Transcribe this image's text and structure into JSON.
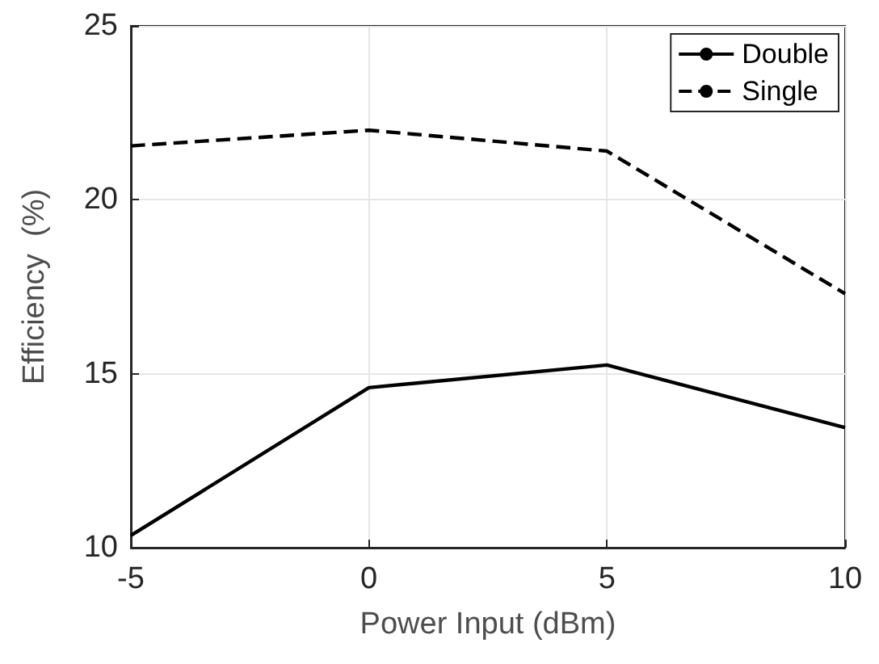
{
  "chart_data": {
    "type": "line",
    "xlabel": "Power Input (dBm)",
    "ylabel": "Efficiency  (%)",
    "x": [
      -5,
      0,
      5,
      10
    ],
    "series": [
      {
        "name": "Double",
        "color": "#000000",
        "line_style": "solid",
        "values": [
          10.35,
          14.6,
          15.25,
          13.45
        ]
      },
      {
        "name": "Single",
        "color": "#000000",
        "line_style": "dashed",
        "values": [
          21.55,
          22.0,
          21.4,
          17.3
        ]
      }
    ],
    "xlim": [
      -5,
      10
    ],
    "xticks": [
      -5,
      0,
      5,
      10
    ],
    "ylim": [
      10,
      25
    ],
    "yticks": [
      10,
      15,
      20,
      25
    ],
    "grid": true,
    "legend": "top right",
    "marker": "none"
  }
}
